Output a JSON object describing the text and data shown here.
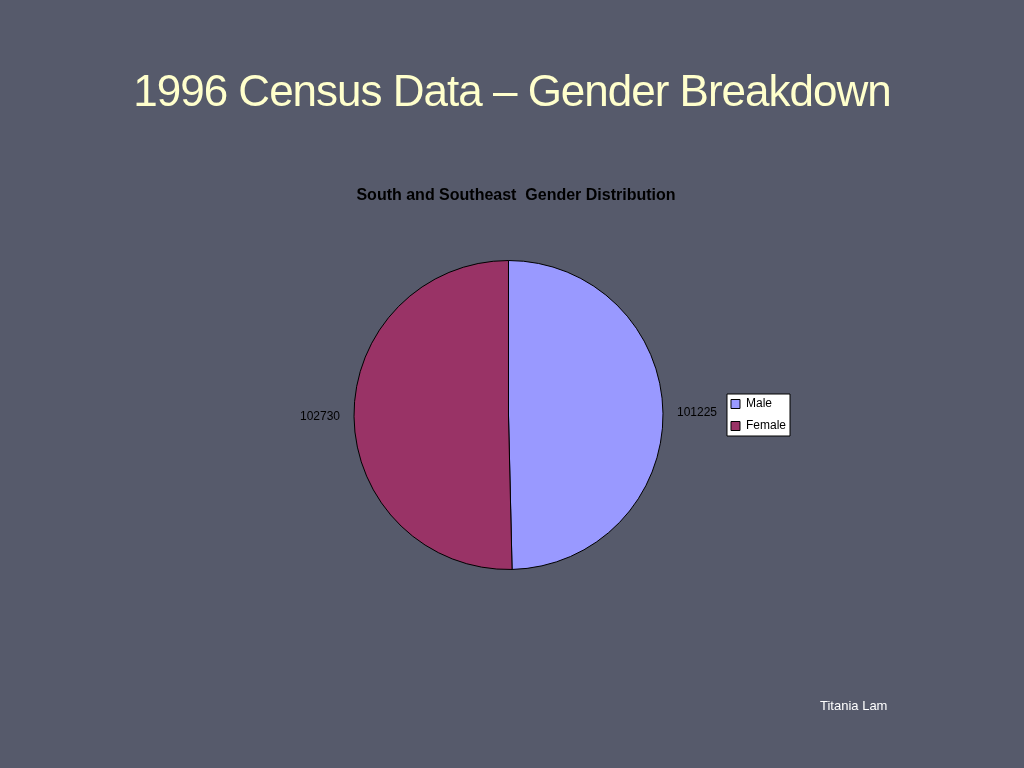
{
  "chart_data": {
    "type": "pie",
    "title": "1996 Census Data – Gender Breakdown",
    "subtitle": "South and Southeast  Gender Distribution",
    "categories": [
      "Male",
      "Female"
    ],
    "values": [
      101225,
      102730
    ],
    "colors": [
      "#9999ff",
      "#993366"
    ],
    "data_labels": true,
    "legend": "right",
    "annotations": [
      "Titania Lam"
    ]
  }
}
